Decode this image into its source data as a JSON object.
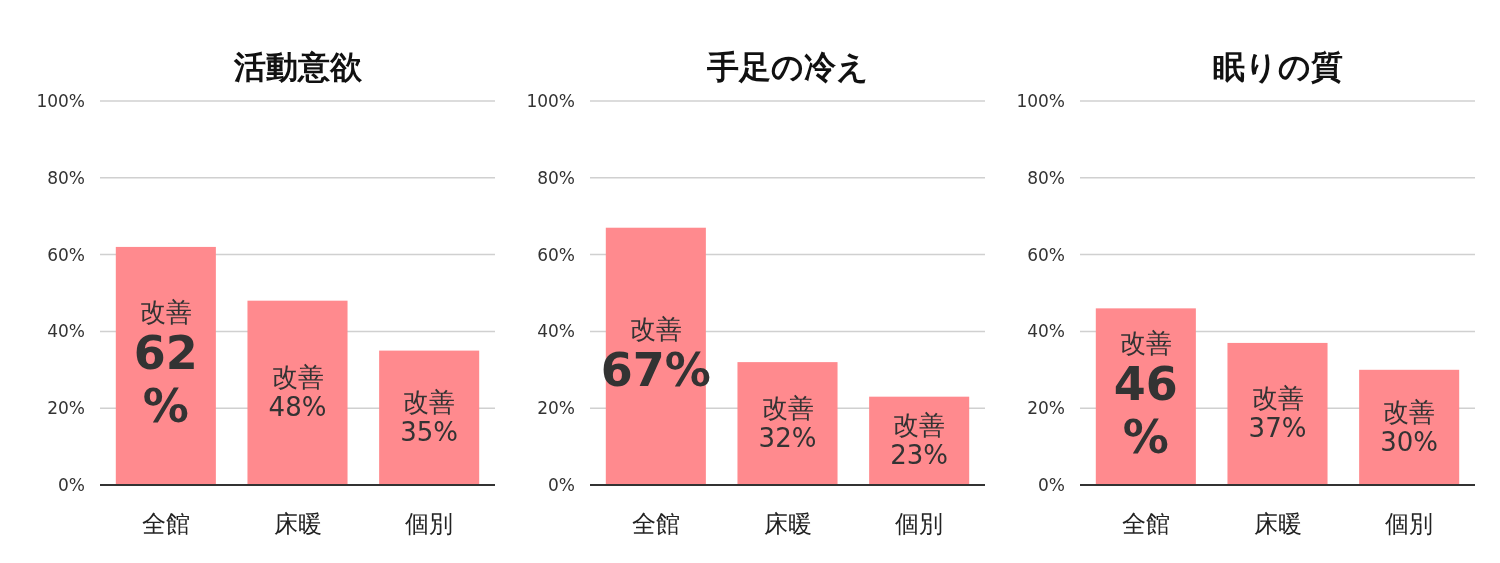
{
  "chart_data": [
    {
      "type": "bar",
      "title": "活動意欲",
      "categories": [
        "全館",
        "床暖",
        "個別"
      ],
      "values": [
        62,
        48,
        35
      ],
      "color": "#ff8a8e",
      "ylim": [
        0,
        100
      ],
      "yticks": [
        {
          "value": 0,
          "label": "0%"
        },
        {
          "value": 20,
          "label": "20%"
        },
        {
          "value": 40,
          "label": "40%"
        },
        {
          "value": 60,
          "label": "60%"
        },
        {
          "value": 80,
          "label": "80%"
        },
        {
          "value": 100,
          "label": "100%"
        }
      ],
      "grid": "y",
      "value_labels": [
        "改善 62 %",
        "改善 48%",
        "改善 35%"
      ]
    },
    {
      "type": "bar",
      "title": "手足の冷え",
      "categories": [
        "全館",
        "床暖",
        "個別"
      ],
      "values": [
        67,
        32,
        23
      ],
      "color": "#ff8a8e",
      "ylim": [
        0,
        100
      ],
      "yticks": [
        {
          "value": 0,
          "label": "0%"
        },
        {
          "value": 20,
          "label": "20%"
        },
        {
          "value": 40,
          "label": "40%"
        },
        {
          "value": 60,
          "label": "60%"
        },
        {
          "value": 80,
          "label": "80%"
        },
        {
          "value": 100,
          "label": "100%"
        }
      ],
      "grid": "y",
      "value_labels": [
        "改善 67%",
        "改善 32%",
        "改善 23%"
      ]
    },
    {
      "type": "bar",
      "title": "眠りの質",
      "categories": [
        "全館",
        "床暖",
        "個別"
      ],
      "values": [
        46,
        37,
        30
      ],
      "color": "#ff8a8e",
      "ylim": [
        0,
        100
      ],
      "yticks": [
        {
          "value": 0,
          "label": "0%"
        },
        {
          "value": 20,
          "label": "20%"
        },
        {
          "value": 40,
          "label": "40%"
        },
        {
          "value": 60,
          "label": "60%"
        },
        {
          "value": 80,
          "label": "80%"
        },
        {
          "value": 100,
          "label": "100%"
        }
      ],
      "grid": "y",
      "value_labels": [
        "改善 46 %",
        "改善 37%",
        "改善 30%"
      ]
    }
  ]
}
